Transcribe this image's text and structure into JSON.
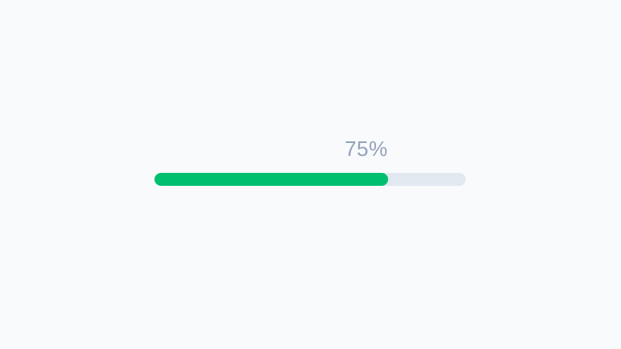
{
  "page": {
    "background_color": "#f8fafc"
  },
  "progress": {
    "label": "75%",
    "percent": 75,
    "fill_color": "#00bf6f",
    "track_color": "#e2e8f0",
    "label_color": "#94a3b8"
  }
}
